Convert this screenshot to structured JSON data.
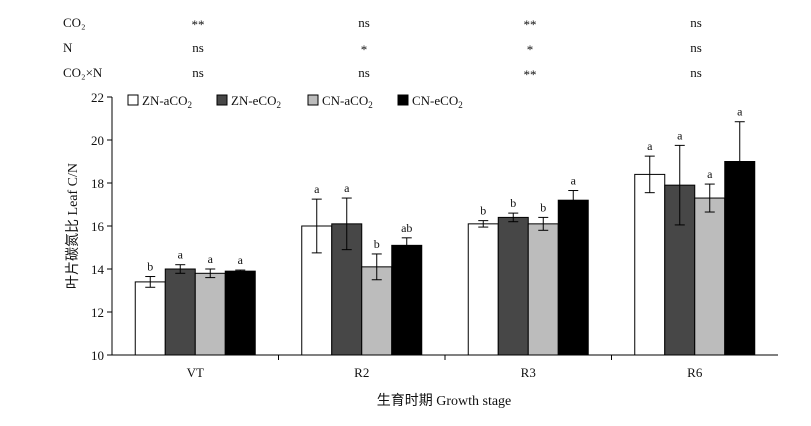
{
  "chart_data": {
    "type": "bar",
    "categories": [
      "VT",
      "R2",
      "R3",
      "R6"
    ],
    "series": [
      {
        "name": "ZN-aCO2",
        "color": "#ffffff",
        "values": [
          13.4,
          16.0,
          16.1,
          18.4
        ],
        "errors": [
          0.25,
          1.25,
          0.15,
          0.85
        ],
        "letters": [
          "b",
          "a",
          "b",
          "a"
        ]
      },
      {
        "name": "ZN-eCO2",
        "color": "#474747",
        "values": [
          14.0,
          16.1,
          16.4,
          17.9
        ],
        "errors": [
          0.2,
          1.2,
          0.2,
          1.85
        ],
        "letters": [
          "a",
          "a",
          "b",
          "a"
        ]
      },
      {
        "name": "CN-aCO2",
        "color": "#bcbcbc",
        "values": [
          13.8,
          14.1,
          16.1,
          17.3
        ],
        "errors": [
          0.2,
          0.6,
          0.3,
          0.65
        ],
        "letters": [
          "a",
          "b",
          "b",
          "a"
        ]
      },
      {
        "name": "CN-eCO2",
        "color": "#000000",
        "values": [
          13.9,
          15.1,
          17.2,
          19.0
        ],
        "errors": [
          0.05,
          0.35,
          0.45,
          1.85
        ],
        "letters": [
          "a",
          "ab",
          "a",
          "a"
        ]
      }
    ],
    "ylim": [
      10,
      22
    ],
    "yticks": [
      10,
      12,
      14,
      16,
      18,
      20,
      22
    ],
    "xlabel": "生育时期 Growth stage",
    "ylabel": "叶片碳氮比 Leaf C/N",
    "legend_position": "top-left"
  },
  "significance": {
    "rows": [
      {
        "label": "CO₂",
        "values": [
          "**",
          "ns",
          "**",
          "ns"
        ]
      },
      {
        "label": "N",
        "values": [
          "ns",
          "*",
          "*",
          "ns"
        ]
      },
      {
        "label": "CO₂×N",
        "values": [
          "ns",
          "ns",
          "**",
          "ns"
        ]
      }
    ]
  }
}
